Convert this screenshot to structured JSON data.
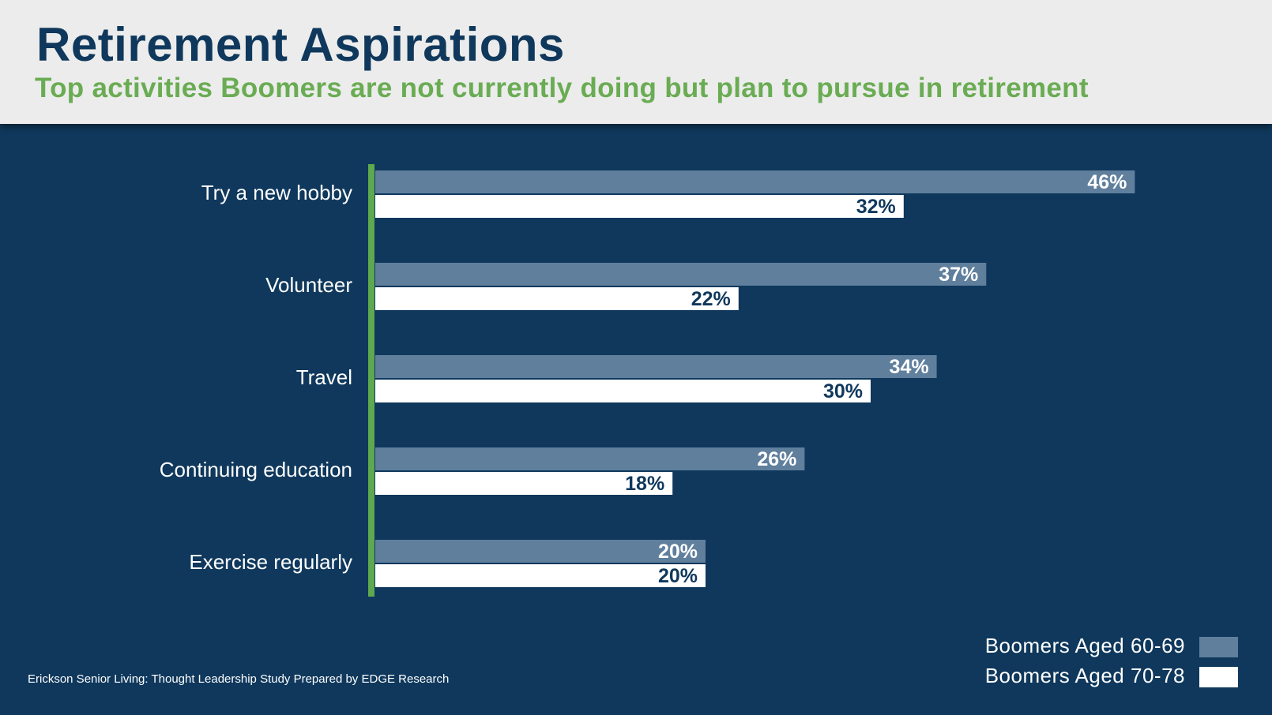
{
  "header": {
    "title": "Retirement Aspirations",
    "subtitle": "Top activities Boomers are not currently doing but plan to pursue in retirement"
  },
  "colors": {
    "background": "#0f385c",
    "header_bg": "#ececec",
    "title": "#0f385c",
    "subtitle": "#6aac53",
    "axis_line": "#5ea84f",
    "series_60_69": "#5f7f9d",
    "series_70_78": "#ffffff",
    "label_on_light": "#0f385c",
    "label_on_dark": "#ffffff"
  },
  "chart_data": {
    "type": "bar",
    "orientation": "horizontal",
    "categories": [
      "Try a new hobby",
      "Volunteer",
      "Travel",
      "Continuing education",
      "Exercise regularly"
    ],
    "series": [
      {
        "name": "Boomers Aged 60-69",
        "values": [
          46,
          37,
          34,
          26,
          20
        ],
        "labels": [
          "46%",
          "37%",
          "34%",
          "26%",
          "20%"
        ]
      },
      {
        "name": "Boomers Aged 70-78",
        "values": [
          32,
          22,
          30,
          18,
          20
        ],
        "labels": [
          "32%",
          "22%",
          "30%",
          "18%",
          "20%"
        ]
      }
    ],
    "value_unit": "%",
    "grid": false,
    "legend_position": "bottom-right"
  },
  "legend": {
    "items": [
      {
        "label": "Boomers Aged 60-69"
      },
      {
        "label": "Boomers Aged 70-78"
      }
    ]
  },
  "footer": {
    "source": "Erickson Senior Living: Thought Leadership Study Prepared by EDGE Research"
  }
}
